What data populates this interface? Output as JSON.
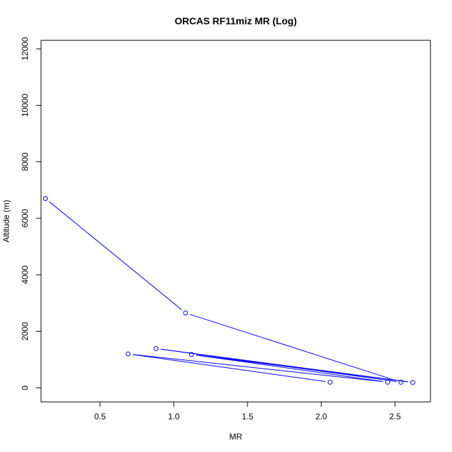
{
  "chart_data": {
    "type": "line",
    "title": "ORCAS RF11miz MR (Log)",
    "xlabel": "MR",
    "ylabel": "Altitude (m)",
    "xlim": [
      0.1,
      2.74
    ],
    "ylim": [
      -500,
      12300
    ],
    "x_ticks": [
      0.5,
      1.0,
      1.5,
      2.0,
      2.5
    ],
    "x_tick_labels": [
      "0.5",
      "1.0",
      "1.5",
      "2.0",
      "2.5"
    ],
    "y_ticks": [
      0,
      2000,
      4000,
      6000,
      8000,
      10000,
      12000
    ],
    "y_tick_labels": [
      "0",
      "2000",
      "4000",
      "6000",
      "8000",
      "10000",
      "12000"
    ],
    "grid": false,
    "series": [
      {
        "color": "#0000ff",
        "markers": "open-circle",
        "points": [
          {
            "x": 0.13,
            "y": 6700
          },
          {
            "x": 1.08,
            "y": 2650
          },
          {
            "x": 2.54,
            "y": 200
          },
          {
            "x": 0.88,
            "y": 1390
          },
          {
            "x": 2.62,
            "y": 190
          },
          {
            "x": 1.12,
            "y": 1180
          },
          {
            "x": 2.45,
            "y": 200
          },
          {
            "x": 0.69,
            "y": 1200
          },
          {
            "x": 2.06,
            "y": 200
          }
        ]
      }
    ]
  }
}
